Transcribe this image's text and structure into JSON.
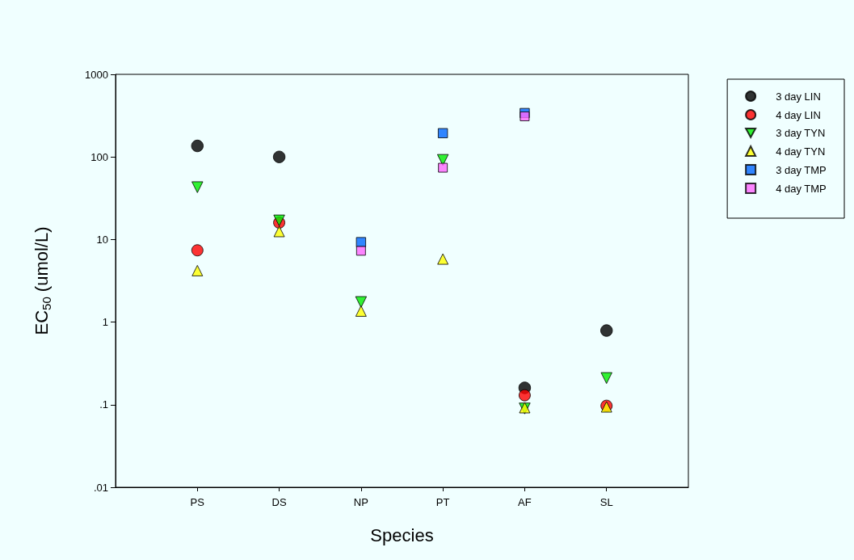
{
  "chart_data": {
    "type": "scatter",
    "xlabel": "Species",
    "ylabel": "EC$_{50}$ (umol/L)",
    "categories": [
      "PS",
      "DS",
      "NP",
      "PT",
      "AF",
      "SL"
    ],
    "log": "y",
    "ylim": [
      0.01,
      1000
    ],
    "yticks": [
      {
        "value": 0.01,
        "label": ".01"
      },
      {
        "value": 0.1,
        "label": ".1"
      },
      1,
      10,
      100,
      1000
    ],
    "grid": false,
    "legend": "right",
    "series": [
      {
        "name": "3 day LIN",
        "color": "#000000",
        "marker": "circle",
        "values": [
          136,
          100,
          null,
          null,
          0.16,
          0.79
        ]
      },
      {
        "name": "4 day LIN",
        "color": "#ff0000",
        "marker": "circle",
        "values": [
          7.4,
          16,
          null,
          null,
          0.13,
          0.097
        ]
      },
      {
        "name": "3 day TYN",
        "color": "#00ee00",
        "marker": "triangle-down",
        "values": [
          43,
          17,
          1.75,
          92,
          0.09,
          0.21
        ]
      },
      {
        "name": "4 day TYN",
        "color": "#ffff00",
        "marker": "triangle",
        "values": [
          4.2,
          12.5,
          1.36,
          5.8,
          0.092,
          0.094
        ]
      },
      {
        "name": "3 day TMP",
        "color": "#0066ff",
        "marker": "square",
        "values": [
          null,
          null,
          9.3,
          194,
          340,
          null
        ]
      },
      {
        "name": "4 day TMP",
        "color": "#ff66ff",
        "marker": "square",
        "values": [
          null,
          null,
          7.3,
          74,
          310,
          null
        ]
      }
    ]
  }
}
